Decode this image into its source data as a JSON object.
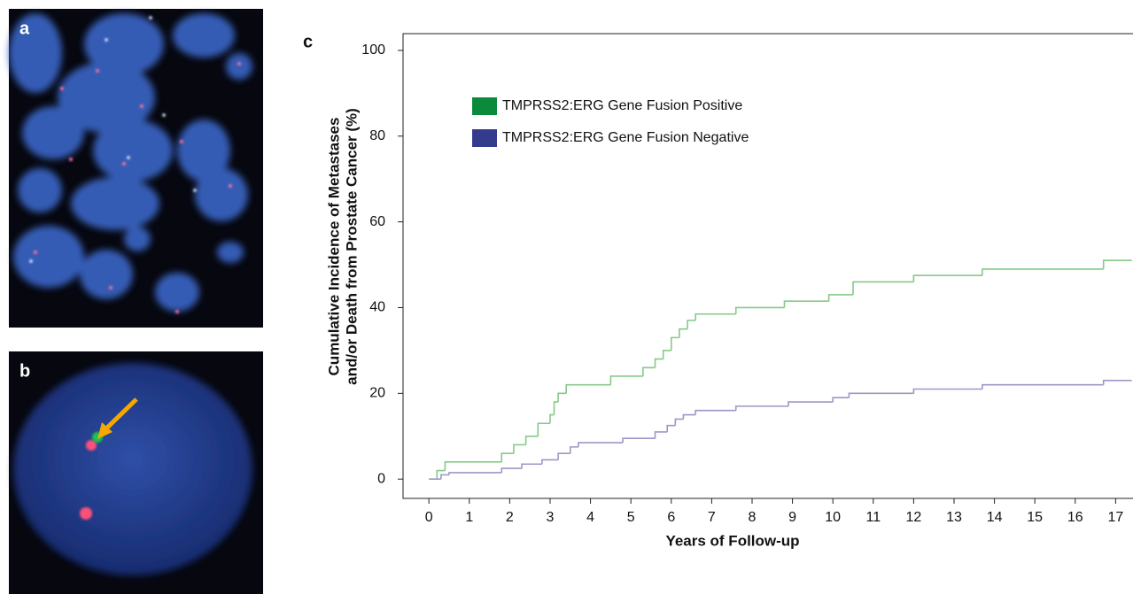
{
  "panels": [
    {
      "label": "a"
    },
    {
      "label": "b"
    }
  ],
  "chart_data": {
    "type": "line",
    "step": true,
    "panel_label": "c",
    "xlabel": "Years of Follow-up",
    "ylabel": [
      "Cumulative Incidence of Metastases",
      "and/or Death from Prostate Cancer (%)"
    ],
    "xlim": [
      -0.64,
      17.43
    ],
    "ylim": [
      -4.5,
      103.9
    ],
    "xticks": [
      0,
      1,
      2,
      3,
      4,
      5,
      6,
      7,
      8,
      9,
      10,
      11,
      12,
      13,
      14,
      15,
      16,
      17
    ],
    "yticks": [
      0,
      20,
      40,
      60,
      80,
      100
    ],
    "legend": "upper left",
    "series": [
      {
        "name": "TMPRSS2:ERG Gene Fusion Positive",
        "color": "#86c987",
        "swatch_color": "#0b8a3c",
        "x": [
          0,
          0.2,
          0.4,
          1.8,
          2.1,
          2.4,
          2.7,
          3.0,
          3.1,
          3.2,
          3.4,
          4.5,
          5.3,
          5.6,
          5.8,
          6.0,
          6.2,
          6.4,
          6.6,
          7.6,
          8.8,
          9.9,
          10.5,
          12.0,
          13.7,
          16.7,
          17.4
        ],
        "values": [
          0,
          2,
          4,
          6,
          8,
          10,
          13,
          15,
          18,
          20,
          22,
          24,
          26,
          28,
          30,
          33,
          35,
          37,
          38.5,
          40,
          41.5,
          43,
          46,
          47.5,
          49,
          51,
          51
        ]
      },
      {
        "name": "TMPRSS2:ERG Gene Fusion Negative",
        "color": "#9d97c6",
        "swatch_color": "#343a8c",
        "x": [
          0,
          0.3,
          0.5,
          1.8,
          2.3,
          2.8,
          3.2,
          3.5,
          3.7,
          4.8,
          5.6,
          5.9,
          6.1,
          6.3,
          6.6,
          7.6,
          8.9,
          10.0,
          10.4,
          12.0,
          13.7,
          16.7,
          17.4
        ],
        "values": [
          0,
          1,
          1.5,
          2.5,
          3.5,
          4.5,
          6,
          7.5,
          8.5,
          9.5,
          11,
          12.5,
          14,
          15,
          16,
          17,
          18,
          19,
          20,
          21,
          22,
          23,
          23
        ]
      }
    ]
  }
}
